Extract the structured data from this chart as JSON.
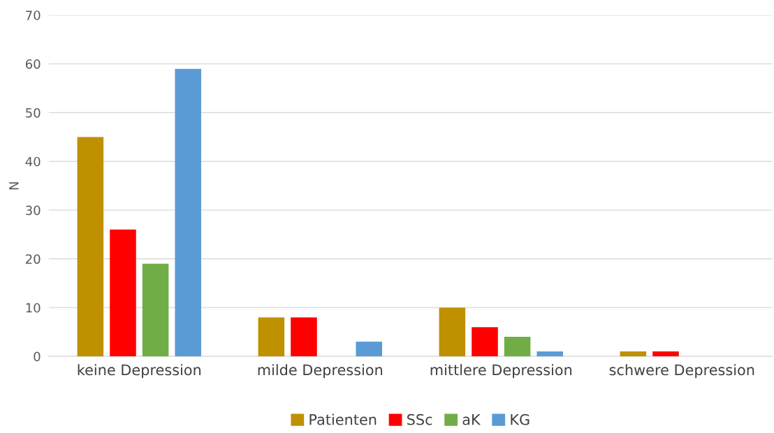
{
  "chart_data": {
    "type": "bar",
    "ylabel": "N",
    "categories": [
      "keine Depression",
      "milde Depression",
      "mittlere Depression",
      "schwere Depression"
    ],
    "series": [
      {
        "name": "Patienten",
        "color": "#bf9000",
        "values": [
          45,
          8,
          10,
          1
        ]
      },
      {
        "name": "SSc",
        "color": "#ff0000",
        "values": [
          26,
          8,
          6,
          1
        ]
      },
      {
        "name": "aK",
        "color": "#70ad47",
        "values": [
          19,
          0,
          4,
          0
        ]
      },
      {
        "name": "KG",
        "color": "#5b9bd5",
        "values": [
          59,
          3,
          1,
          0
        ]
      }
    ],
    "ylim": [
      0,
      70
    ],
    "yticks": [
      0,
      10,
      20,
      30,
      40,
      50,
      60,
      70
    ],
    "grid": "y",
    "legend": "bottom"
  }
}
